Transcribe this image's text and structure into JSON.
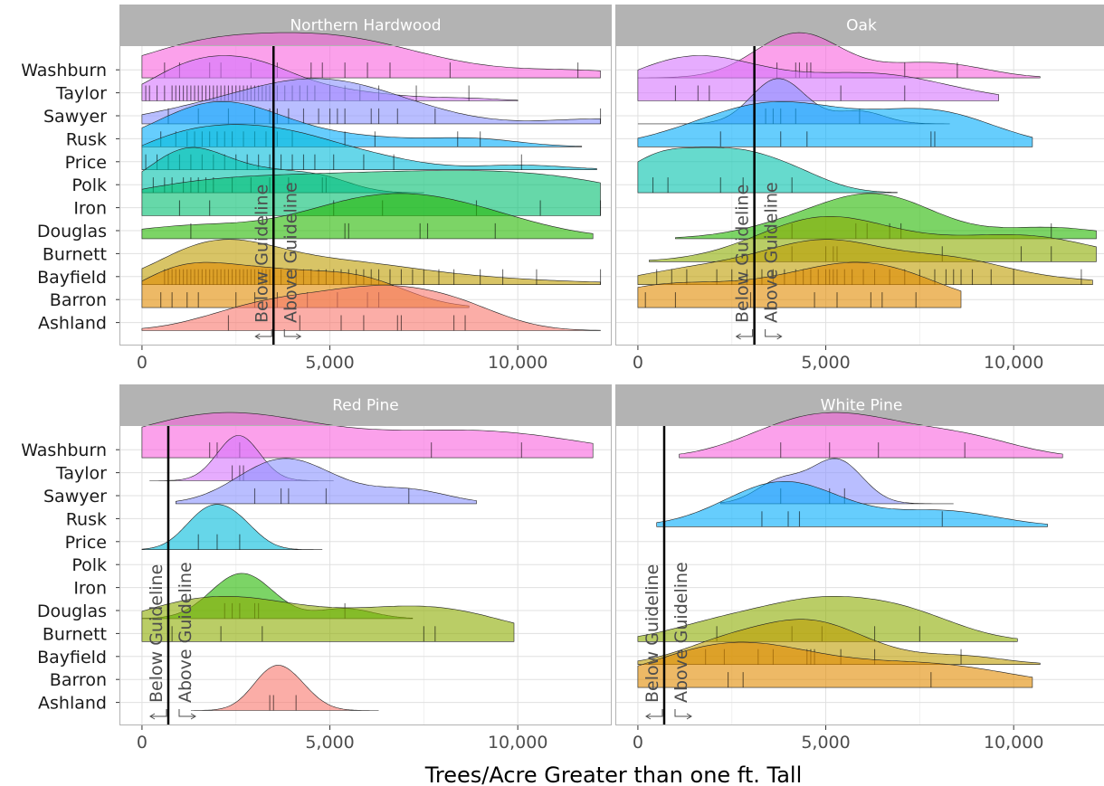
{
  "chart_data": {
    "type": "ridgeline",
    "xlabel": "Trees/Acre Greater than one ft. Tall",
    "xlim": [
      -600,
      12500
    ],
    "xticks": [
      0,
      5000,
      10000
    ],
    "xtick_labels": [
      "0",
      "5,000",
      "10,000"
    ],
    "categories": [
      "Ashland",
      "Barron",
      "Bayfield",
      "Burnett",
      "Douglas",
      "Iron",
      "Polk",
      "Price",
      "Rusk",
      "Sawyer",
      "Taylor",
      "Washburn"
    ],
    "colors": {
      "Ashland": "#F8766D",
      "Barron": "#E18A00",
      "Bayfield": "#BE9C00",
      "Burnett": "#8CAB00",
      "Douglas": "#24B700",
      "Iron": "#00BE70",
      "Polk": "#00C1AB",
      "Price": "#00BBDA",
      "Rusk": "#00ACFC",
      "Sawyer": "#8B93FF",
      "Taylor": "#D575FE",
      "Washburn": "#F962DD"
    },
    "guideline_labels": {
      "below": "Below Guideline",
      "above": "Above Guideline"
    },
    "grid": true,
    "panels": [
      {
        "title": "Northern Hardwood",
        "guideline": 3500,
        "series": [
          {
            "name": "Ashland",
            "min": 0,
            "max": 12200,
            "obs": [
              2300,
              3500,
              4200,
              5300,
              5900,
              6800,
              6900,
              8300,
              8600
            ]
          },
          {
            "name": "Barron",
            "min": 0,
            "max": 8700,
            "obs": [
              500,
              800,
              1200,
              1500,
              2500,
              3000,
              3600,
              4400,
              5200,
              6000,
              6300
            ]
          },
          {
            "name": "Bayfield",
            "min": 0,
            "max": 12200,
            "obs": [
              600,
              700,
              800,
              900,
              1000,
              1100,
              1200,
              1300,
              1400,
              1500,
              1600,
              1700,
              1800,
              1900,
              2000,
              2100,
              2200,
              2300,
              2400,
              2500,
              2600,
              2700,
              2800,
              2900,
              3000,
              3100,
              3200,
              3300,
              3400,
              3500,
              3700,
              3900,
              4100,
              4300,
              4500,
              4700,
              4900,
              5100,
              5300,
              5500,
              5700,
              5900,
              6100,
              6300,
              6600,
              6900,
              7200,
              7500,
              7900,
              8300,
              9000,
              9600,
              10500,
              12200
            ]
          },
          {
            "name": "Burnett",
            "min": 0,
            "max": 12200,
            "obs": []
          },
          {
            "name": "Douglas",
            "min": 0,
            "max": 12000,
            "obs": [
              1300,
              5400,
              5500,
              7400,
              7600,
              9400
            ]
          },
          {
            "name": "Iron",
            "min": 0,
            "max": 12200,
            "obs": [
              1000,
              1800,
              5100,
              6400,
              8900,
              10600,
              12200
            ]
          },
          {
            "name": "Polk",
            "min": 0,
            "max": 7500,
            "obs": [
              300,
              600,
              800,
              1100,
              1300,
              1500,
              1700,
              1900,
              2400,
              2900,
              3400,
              3900,
              4800,
              4900
            ]
          },
          {
            "name": "Price",
            "min": 0,
            "max": 12100,
            "obs": [
              100,
              400,
              700,
              1000,
              1300,
              1600,
              1900,
              2200,
              2500,
              2800,
              3100,
              3400,
              3700,
              4000,
              4300,
              4600,
              5100,
              5900,
              6700,
              10100
            ]
          },
          {
            "name": "Rusk",
            "min": 0,
            "max": 11700,
            "obs": [
              500,
              900,
              1200,
              1400,
              1600,
              1800,
              2000,
              2200,
              2400,
              2700,
              3000,
              3300,
              3600,
              4000,
              5400,
              6200,
              8400,
              9000
            ]
          },
          {
            "name": "Sawyer",
            "min": 0,
            "max": 12200,
            "obs": [
              700,
              1500,
              2300,
              3000,
              3400,
              3600,
              3900,
              4300,
              4700,
              5000,
              5200,
              5400,
              6100,
              6300,
              6800,
              7800,
              12200
            ]
          },
          {
            "name": "Taylor",
            "min": 0,
            "max": 10000,
            "obs": [
              100,
              200,
              400,
              600,
              800,
              900,
              1000,
              1100,
              1200,
              1300,
              1400,
              1500,
              1600,
              1700,
              1800,
              1900,
              2000,
              2100,
              2200,
              2300,
              2400,
              2500,
              2600,
              2700,
              2800,
              2900,
              3000,
              3100,
              3200,
              3300,
              3400,
              3500,
              3600,
              3800,
              4000,
              4200,
              4400,
              4600,
              5000,
              5400,
              5800,
              6300,
              7300,
              8700
            ]
          },
          {
            "name": "Washburn",
            "min": 0,
            "max": 12200,
            "obs": [
              600,
              1000,
              1800,
              2100,
              2900,
              3600,
              4500,
              4800,
              5400,
              6000,
              6600,
              8200,
              11600
            ]
          }
        ]
      },
      {
        "title": "Oak",
        "guideline": 3100,
        "series": [
          {
            "name": "Ashland",
            "min": 0,
            "max": 0,
            "obs": []
          },
          {
            "name": "Barron",
            "min": 0,
            "max": 8600,
            "obs": [
              200,
              1000,
              3000,
              4700,
              5300,
              6200,
              6500,
              7400
            ]
          },
          {
            "name": "Bayfield",
            "min": 0,
            "max": 12100,
            "obs": [
              500,
              900,
              1300,
              2100,
              2500,
              2900,
              3300,
              3600,
              3900,
              4200,
              4400,
              4600,
              4800,
              5000,
              5100,
              5200,
              5300,
              5500,
              5700,
              6000,
              6300,
              6700,
              7100,
              7500,
              7900,
              8200,
              8400,
              8600,
              8900,
              9400,
              10000,
              11800
            ]
          },
          {
            "name": "Burnett",
            "min": 300,
            "max": 12200,
            "obs": [
              4100,
              5000,
              5200,
              5300,
              8100,
              10200,
              11000
            ]
          },
          {
            "name": "Douglas",
            "min": 1000,
            "max": 12200,
            "obs": [
              4100,
              5800,
              6100,
              6700,
              7000,
              11000
            ]
          },
          {
            "name": "Iron",
            "min": 0,
            "max": 0,
            "obs": []
          },
          {
            "name": "Polk",
            "min": 0,
            "max": 6900,
            "obs": [
              400,
              800,
              2200,
              2800,
              4100
            ]
          },
          {
            "name": "Price",
            "min": 0,
            "max": 0,
            "obs": []
          },
          {
            "name": "Rusk",
            "min": 0,
            "max": 10500,
            "obs": [
              2200,
              3800,
              4500,
              7800,
              7900
            ]
          },
          {
            "name": "Sawyer",
            "min": 0,
            "max": 8300,
            "obs": [
              3400,
              3600,
              3800,
              4200,
              5900
            ]
          },
          {
            "name": "Taylor",
            "min": 0,
            "max": 9600,
            "obs": [
              1000,
              1600,
              1900,
              5400,
              7100
            ]
          },
          {
            "name": "Washburn",
            "min": 0,
            "max": 10700,
            "obs": [
              3700,
              4200,
              4300,
              4500,
              4600,
              7100,
              8500
            ]
          }
        ]
      },
      {
        "title": "Red Pine",
        "guideline": 700,
        "series": [
          {
            "name": "Ashland",
            "min": 1300,
            "max": 6300,
            "obs": [
              3400,
              3500,
              4100
            ]
          },
          {
            "name": "Barron",
            "min": 0,
            "max": 0,
            "obs": []
          },
          {
            "name": "Bayfield",
            "min": 0,
            "max": 0,
            "obs": []
          },
          {
            "name": "Burnett",
            "min": 0,
            "max": 9900,
            "obs": [
              800,
              2100,
              3200,
              7500,
              7800
            ]
          },
          {
            "name": "Douglas",
            "min": 0,
            "max": 7200,
            "obs": [
              2200,
              2400,
              2600,
              3000,
              3100,
              5400
            ]
          },
          {
            "name": "Iron",
            "min": 0,
            "max": 0,
            "obs": []
          },
          {
            "name": "Polk",
            "min": 0,
            "max": 0,
            "obs": []
          },
          {
            "name": "Price",
            "min": 0,
            "max": 4800,
            "obs": [
              1500,
              2000,
              2600
            ]
          },
          {
            "name": "Rusk",
            "min": 0,
            "max": 0,
            "obs": []
          },
          {
            "name": "Sawyer",
            "min": 900,
            "max": 8900,
            "obs": [
              3000,
              3700,
              3900,
              4900,
              7100
            ]
          },
          {
            "name": "Taylor",
            "min": 200,
            "max": 5100,
            "obs": [
              2400,
              2600,
              2700
            ]
          },
          {
            "name": "Washburn",
            "min": 0,
            "max": 12000,
            "obs": [
              1800,
              2000,
              2600,
              7700,
              10100
            ]
          }
        ]
      },
      {
        "title": "White Pine",
        "guideline": 700,
        "series": [
          {
            "name": "Ashland",
            "min": 0,
            "max": 0,
            "obs": []
          },
          {
            "name": "Barron",
            "min": 0,
            "max": 10500,
            "obs": [
              2400,
              2800,
              7800
            ]
          },
          {
            "name": "Bayfield",
            "min": 0,
            "max": 10700,
            "obs": [
              1800,
              2300,
              3200,
              3600,
              4500,
              4600,
              4700,
              5400,
              6300,
              8600
            ]
          },
          {
            "name": "Burnett",
            "min": 0,
            "max": 10100,
            "obs": [
              2100,
              4100,
              4900,
              6300,
              7500
            ]
          },
          {
            "name": "Douglas",
            "min": 0,
            "max": 0,
            "obs": []
          },
          {
            "name": "Iron",
            "min": 0,
            "max": 0,
            "obs": []
          },
          {
            "name": "Polk",
            "min": 0,
            "max": 0,
            "obs": []
          },
          {
            "name": "Price",
            "min": 0,
            "max": 0,
            "obs": []
          },
          {
            "name": "Rusk",
            "min": 500,
            "max": 10900,
            "obs": [
              3300,
              4000,
              4300,
              8100
            ]
          },
          {
            "name": "Sawyer",
            "min": 2200,
            "max": 8400,
            "obs": [
              3800,
              5100,
              5500
            ]
          },
          {
            "name": "Taylor",
            "min": 0,
            "max": 0,
            "obs": []
          },
          {
            "name": "Washburn",
            "min": 1100,
            "max": 11300,
            "obs": [
              3800,
              5100,
              6400,
              8700
            ]
          }
        ]
      }
    ]
  }
}
